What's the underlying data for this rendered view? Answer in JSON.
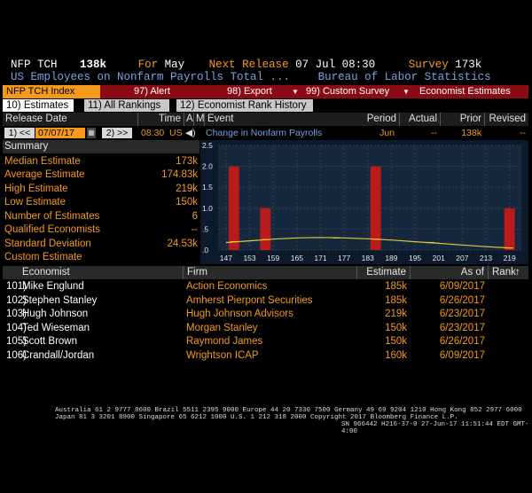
{
  "header": {
    "ticker": "NFP TCH",
    "value": "138k",
    "for_label": "For",
    "for_value": "May",
    "next_release_label": "Next Release",
    "next_release_value": "07 Jul 08:30",
    "survey_label": "Survey",
    "survey_value": "173k",
    "description": "US Employees on Nonfarm Payrolls Total ...",
    "source": "Bureau of Labor Statistics"
  },
  "function_bar": {
    "index": "NFP TCH Index",
    "alert": "97) Alert",
    "export": "98) Export",
    "custom_survey": "99) Custom Survey",
    "economist_estimates": "Economist Estimates"
  },
  "tabs": [
    {
      "label": "10) Estimates"
    },
    {
      "label": "11) All Rankings"
    },
    {
      "label": "12) Economist Rank History"
    }
  ],
  "grid_header": {
    "release_date": "Release Date",
    "time": "Time",
    "a": "A",
    "m": "M",
    "event": "Event",
    "period": "Period",
    "actual": "Actual",
    "prior": "Prior",
    "revised": "Revised"
  },
  "release_row": {
    "prev": "1) <<",
    "date": "07/07/17",
    "next": "2) >>",
    "time": "08:30",
    "country": "US",
    "event": "Change in Nonfarm Payrolls",
    "period": "Jun",
    "actual": "--",
    "prior": "138k",
    "revised": "--"
  },
  "summary": {
    "title": "Summary",
    "rows": [
      {
        "label": "Median Estimate",
        "value": "173k"
      },
      {
        "label": "Average Estimate",
        "value": "174.83k"
      },
      {
        "label": "High Estimate",
        "value": "219k"
      },
      {
        "label": "Low Estimate",
        "value": "150k"
      },
      {
        "label": "Number of Estimates",
        "value": "6"
      },
      {
        "label": "Qualified Economists",
        "value": "--"
      },
      {
        "label": "Standard Deviation",
        "value": "24.53k"
      },
      {
        "label": "Custom Estimate",
        "value": ""
      }
    ]
  },
  "chart_data": {
    "type": "bar",
    "x_ticks": [
      "147",
      "153",
      "159",
      "165",
      "171",
      "177",
      "183",
      "189",
      "195",
      "201",
      "207",
      "213",
      "219"
    ],
    "y_ticks": [
      "2.5",
      "2.0",
      "1.5",
      "1.0",
      ".5",
      ".0"
    ],
    "ylim": [
      0,
      2.5
    ],
    "xlim": [
      145,
      222
    ],
    "bars": [
      {
        "x": 149,
        "value": 2.0
      },
      {
        "x": 157,
        "value": 1.0
      },
      {
        "x": 185,
        "value": 2.0
      },
      {
        "x": 219,
        "value": 1.0
      }
    ],
    "curve": [
      {
        "x": 147,
        "y": 0.18
      },
      {
        "x": 153,
        "y": 0.22
      },
      {
        "x": 159,
        "y": 0.26
      },
      {
        "x": 165,
        "y": 0.29
      },
      {
        "x": 171,
        "y": 0.3
      },
      {
        "x": 177,
        "y": 0.29
      },
      {
        "x": 183,
        "y": 0.27
      },
      {
        "x": 189,
        "y": 0.24
      },
      {
        "x": 195,
        "y": 0.2
      },
      {
        "x": 201,
        "y": 0.16
      },
      {
        "x": 207,
        "y": 0.12
      },
      {
        "x": 213,
        "y": 0.08
      },
      {
        "x": 219,
        "y": 0.05
      }
    ],
    "markers": [
      {
        "x": 149,
        "y": 0.2
      },
      {
        "x": 157,
        "y": 0.25
      },
      {
        "x": 175,
        "y": 0.29
      },
      {
        "x": 185,
        "y": 0.26
      },
      {
        "x": 199,
        "y": 0.18
      },
      {
        "x": 219,
        "y": 0.05
      }
    ],
    "colors": {
      "bar": "#b81b1b",
      "curve": "#e8c53a",
      "bg": "#0c1a2c",
      "grid": "#3a4658"
    }
  },
  "economists": {
    "headers": {
      "economist": "Economist",
      "firm": "Firm",
      "estimate": "Estimate",
      "as_of": "As of",
      "rank": "Rank"
    },
    "rows": [
      {
        "id": "101)",
        "name": "Mike Englund",
        "firm": "Action Economics",
        "estimate": "185k",
        "as_of": "6/09/2017"
      },
      {
        "id": "102)",
        "name": "Stephen Stanley",
        "firm": "Amherst Pierpont Securities",
        "estimate": "185k",
        "as_of": "6/26/2017"
      },
      {
        "id": "103)",
        "name": "Hugh Johnson",
        "firm": "Hugh Johnson Advisors",
        "estimate": "219k",
        "as_of": "6/23/2017"
      },
      {
        "id": "104)",
        "name": "Ted Wieseman",
        "firm": "Morgan Stanley",
        "estimate": "150k",
        "as_of": "6/23/2017"
      },
      {
        "id": "105)",
        "name": "Scott Brown",
        "firm": "Raymond James",
        "estimate": "150k",
        "as_of": "6/26/2017"
      },
      {
        "id": "106)",
        "name": "Crandall/Jordan",
        "firm": "Wrightson ICAP",
        "estimate": "160k",
        "as_of": "6/09/2017"
      }
    ]
  },
  "footer": {
    "line1": "Australia 61 2 9777 8600 Brazil 5511 2395 9000 Europe 44 20 7330 7500 Germany 49 69 9204 1210 Hong Kong 852 2977 6000",
    "line2": "Japan 81 3 3201 8900        Singapore 65 6212 1000        U.S. 1 212 318 2000              Copyright 2017 Bloomberg Finance L.P.",
    "line3": "SN 966442 H216-37-0 27-Jun-17 11:51:44 EDT  GMT-4:00"
  }
}
